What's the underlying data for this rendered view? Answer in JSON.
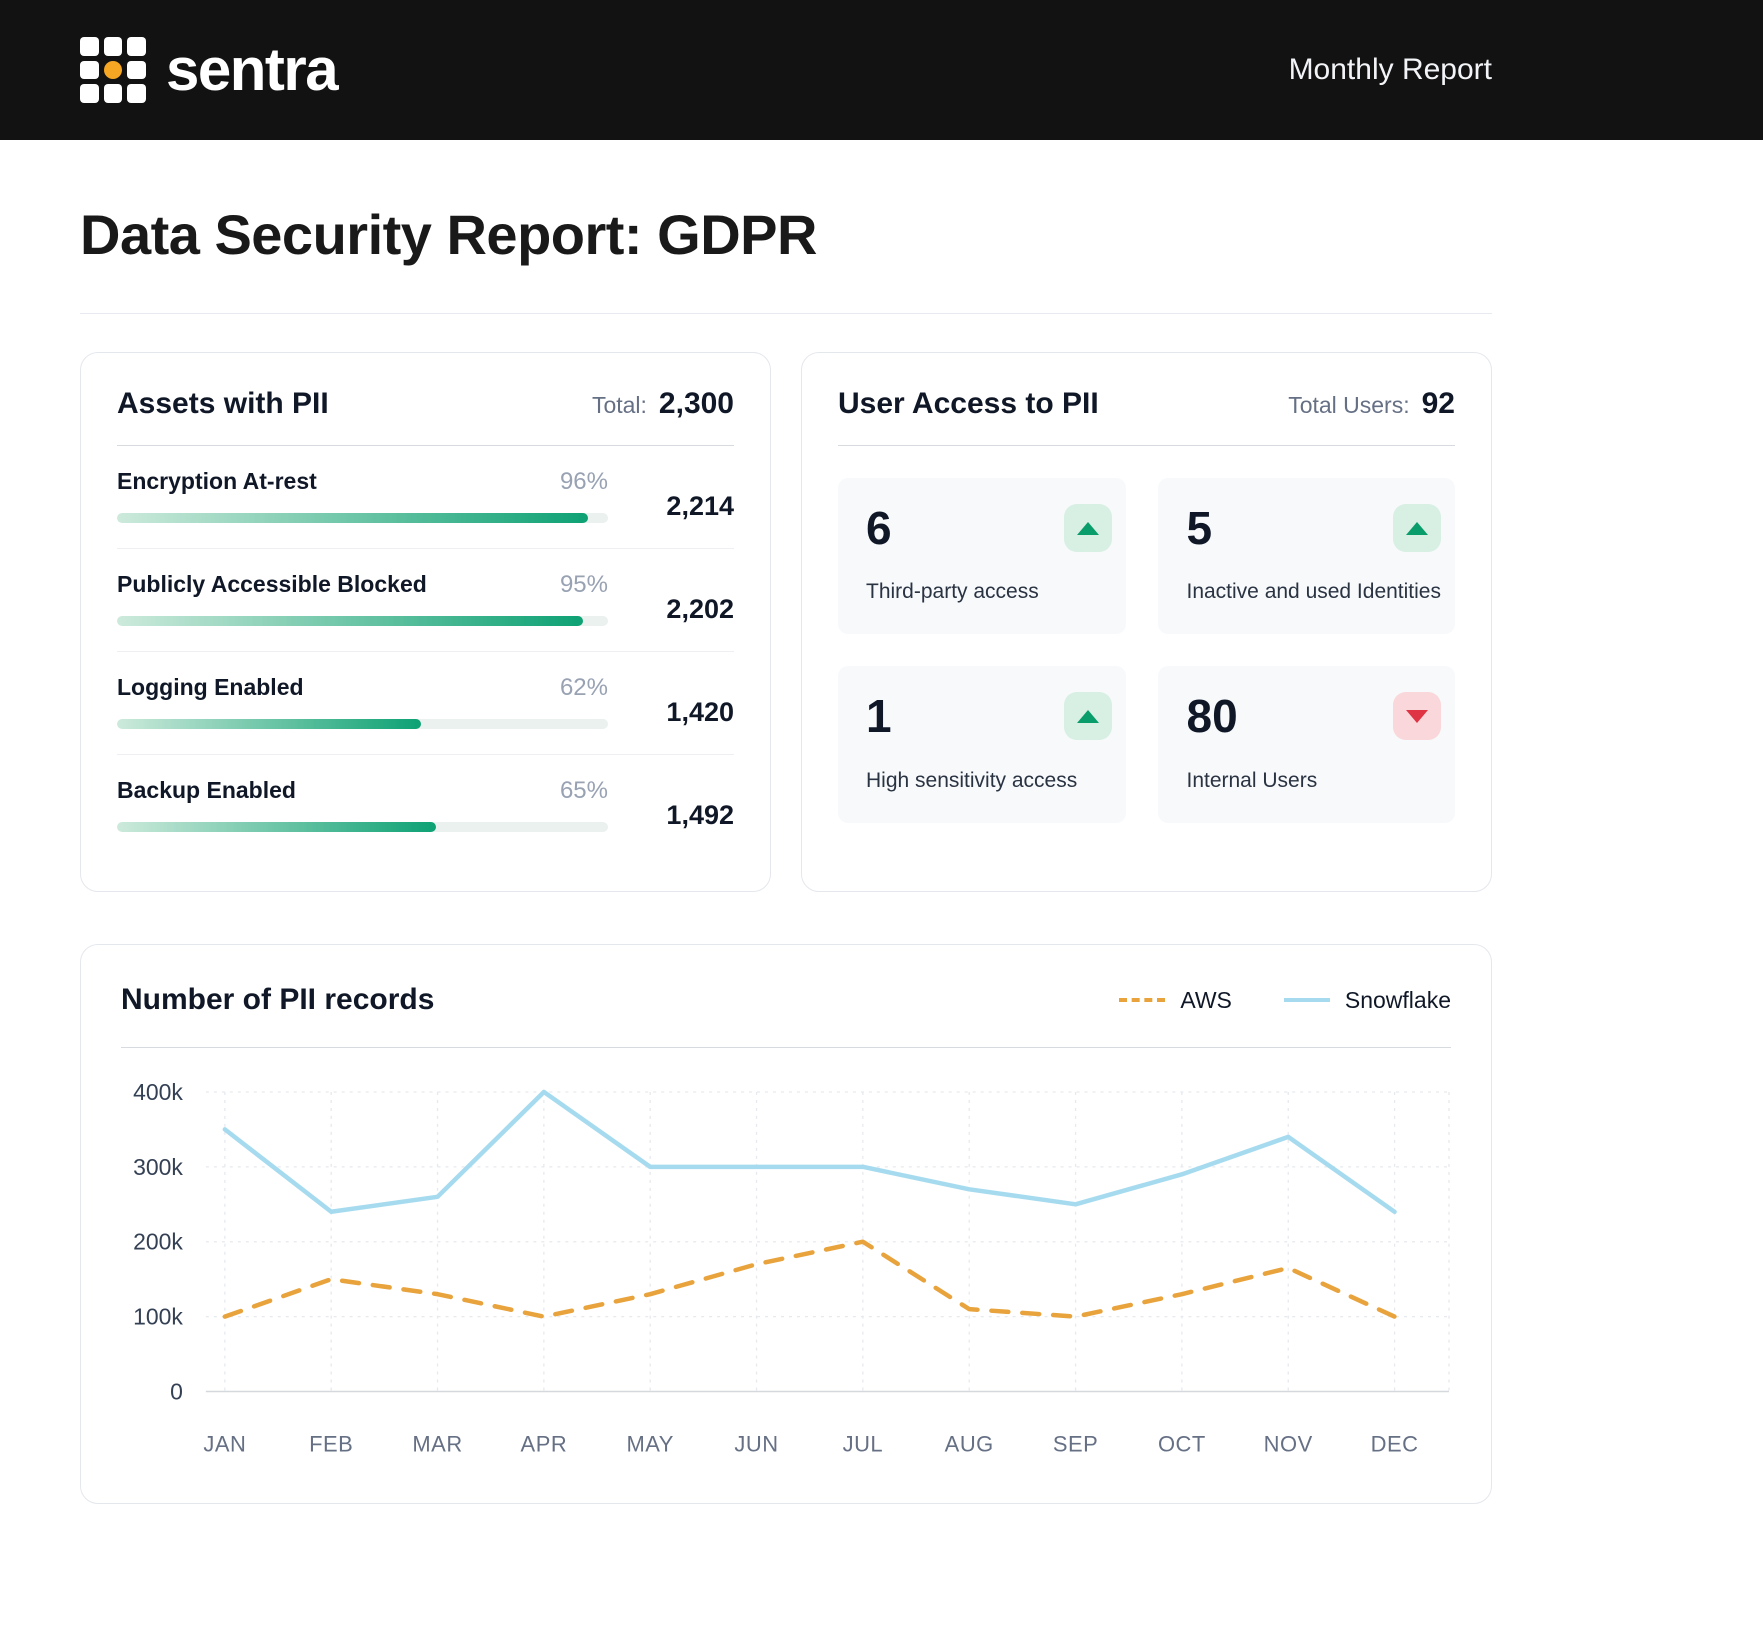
{
  "header": {
    "brand": "sentra",
    "report_label": "Monthly Report"
  },
  "page": {
    "title": "Data Security Report: GDPR"
  },
  "assets_card": {
    "title": "Assets with PII",
    "total_label": "Total:",
    "total_value": "2,300",
    "rows": [
      {
        "label": "Encryption At-rest",
        "percent": "96%",
        "percent_value": 96,
        "value": "2,214"
      },
      {
        "label": "Publicly Accessible Blocked",
        "percent": "95%",
        "percent_value": 95,
        "value": "2,202"
      },
      {
        "label": "Logging Enabled",
        "percent": "62%",
        "percent_value": 62,
        "value": "1,420"
      },
      {
        "label": "Backup Enabled",
        "percent": "65%",
        "percent_value": 65,
        "value": "1,492"
      }
    ]
  },
  "access_card": {
    "title": "User Access to PII",
    "total_label": "Total Users:",
    "total_value": "92",
    "tiles": [
      {
        "value": "6",
        "label": "Third-party access",
        "trend": "up"
      },
      {
        "value": "5",
        "label": "Inactive and used Identities",
        "trend": "up"
      },
      {
        "value": "1",
        "label": "High sensitivity access",
        "trend": "up"
      },
      {
        "value": "80",
        "label": "Internal Users",
        "trend": "down"
      }
    ]
  },
  "chart_card": {
    "title": "Number of PII records"
  },
  "chart_data": {
    "type": "line",
    "title": "Number of PII records",
    "x": [
      "JAN",
      "FEB",
      "MAR",
      "APR",
      "MAY",
      "JUN",
      "JUL",
      "AUG",
      "SEP",
      "OCT",
      "NOV",
      "DEC"
    ],
    "ylim": [
      0,
      400000
    ],
    "y_ticks": [
      {
        "value": 400000,
        "label": "400k"
      },
      {
        "value": 300000,
        "label": "300k"
      },
      {
        "value": 200000,
        "label": "200k"
      },
      {
        "value": 100000,
        "label": "100k"
      },
      {
        "value": 0,
        "label": "0"
      }
    ],
    "grid": true,
    "legend_position": "top-right",
    "series": [
      {
        "name": "AWS",
        "style": "dashed",
        "color": "#E8A33C",
        "values": [
          100000,
          150000,
          130000,
          100000,
          130000,
          170000,
          200000,
          110000,
          100000,
          130000,
          165000,
          100000
        ]
      },
      {
        "name": "Snowflake",
        "style": "solid",
        "color": "#A6DBEF",
        "values": [
          350000,
          240000,
          260000,
          400000,
          300000,
          300000,
          300000,
          270000,
          250000,
          290000,
          340000,
          240000
        ]
      }
    ]
  },
  "colors": {
    "header_bg": "#121212",
    "brand_dot": "#F5A623",
    "progress_gradient_start": "#CDEADC",
    "progress_gradient_end": "#0DA173",
    "trend_up": "#0A9D6C",
    "trend_up_bg": "#D8EFE3",
    "trend_down": "#DF3444",
    "trend_down_bg": "#F9D7DA",
    "aws_line": "#E8A33C",
    "snowflake_line": "#A6DBEF"
  }
}
